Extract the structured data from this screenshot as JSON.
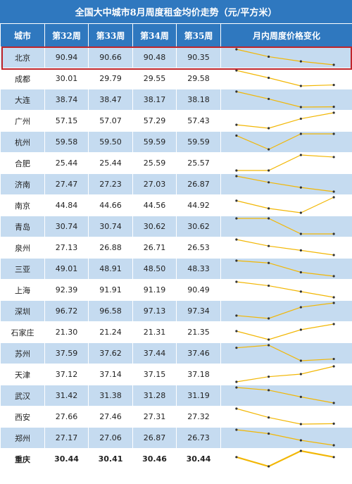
{
  "title": "全国大中城市8月周度租金均价走势（元/平方米）",
  "headers": [
    "城市",
    "第32周",
    "第33周",
    "第34周",
    "第35周",
    "月内周度价格变化"
  ],
  "colors": {
    "header_bg": "#2f78bf",
    "row_alt": "#c5dbf0",
    "sparkline": "#f2b705",
    "highlight": "#c0252a"
  },
  "highlighted_row": "北京",
  "chart_data": {
    "type": "table",
    "title": "全国大中城市8月周度租金均价走势（元/平方米）",
    "categories": [
      "第32周",
      "第33周",
      "第34周",
      "第35周"
    ],
    "rows": [
      {
        "city": "北京",
        "values": [
          90.94,
          90.66,
          90.48,
          90.35
        ]
      },
      {
        "city": "成都",
        "values": [
          30.01,
          29.79,
          29.55,
          29.58
        ]
      },
      {
        "city": "大连",
        "values": [
          38.74,
          38.47,
          38.17,
          38.18
        ]
      },
      {
        "city": "广州",
        "values": [
          57.15,
          57.07,
          57.29,
          57.43
        ]
      },
      {
        "city": "杭州",
        "values": [
          59.58,
          59.5,
          59.59,
          59.59
        ]
      },
      {
        "city": "合肥",
        "values": [
          25.44,
          25.44,
          25.59,
          25.57
        ]
      },
      {
        "city": "济南",
        "values": [
          27.47,
          27.23,
          27.03,
          26.87
        ]
      },
      {
        "city": "南京",
        "values": [
          44.84,
          44.66,
          44.56,
          44.92
        ]
      },
      {
        "city": "青岛",
        "values": [
          30.74,
          30.74,
          30.62,
          30.62
        ]
      },
      {
        "city": "泉州",
        "values": [
          27.13,
          26.88,
          26.71,
          26.53
        ]
      },
      {
        "city": "三亚",
        "values": [
          49.01,
          48.91,
          48.5,
          48.33
        ]
      },
      {
        "city": "上海",
        "values": [
          92.39,
          91.91,
          91.19,
          90.49
        ]
      },
      {
        "city": "深圳",
        "values": [
          96.72,
          96.58,
          97.13,
          97.34
        ]
      },
      {
        "city": "石家庄",
        "values": [
          21.3,
          21.24,
          21.31,
          21.35
        ]
      },
      {
        "city": "苏州",
        "values": [
          37.59,
          37.62,
          37.44,
          37.46
        ]
      },
      {
        "city": "天津",
        "values": [
          37.12,
          37.14,
          37.15,
          37.18
        ]
      },
      {
        "city": "武汉",
        "values": [
          31.42,
          31.38,
          31.28,
          31.19
        ]
      },
      {
        "city": "西安",
        "values": [
          27.66,
          27.46,
          27.31,
          27.32
        ]
      },
      {
        "city": "郑州",
        "values": [
          27.17,
          27.06,
          26.87,
          26.73
        ]
      },
      {
        "city": "重庆",
        "values": [
          30.44,
          30.41,
          30.46,
          30.44
        ]
      }
    ]
  }
}
